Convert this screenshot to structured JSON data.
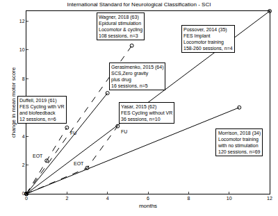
{
  "chart_data": {
    "type": "line",
    "title": "International Standard for Neurological Classification - SCI",
    "x_label": "months",
    "y_label": "change in mean motor score",
    "xlim": [
      0,
      12
    ],
    "ylim": [
      0,
      12.7
    ],
    "xticks": [
      0,
      2,
      4,
      6,
      8,
      10,
      12
    ],
    "yticks": [
      0,
      2,
      4,
      6,
      8,
      10,
      12
    ],
    "grid": false,
    "series": [
      {
        "name": "Wagner, 2018 (63)",
        "label": [
          "Epidural stimulation",
          "Locomotor & cycling",
          "108 sessions, n=3"
        ],
        "x": [
          0,
          5.2
        ],
        "values": [
          0,
          10.3
        ],
        "point_labels": [
          null,
          null
        ],
        "color": "#000000",
        "line_style": "dash",
        "marker": "circle"
      },
      {
        "name": "Gerasimenko, 2015 (64)",
        "label": [
          "SCS,Zero gravity",
          "plus drug",
          "16 sessions, n=5"
        ],
        "x": [
          0,
          4
        ],
        "values": [
          0,
          7
        ],
        "point_labels": [
          null,
          null
        ],
        "color": "#000000",
        "line_style": "solid",
        "marker": "circle"
      },
      {
        "name": "Duffell, 2019 (61)",
        "label": [
          "FES Cycling with VR",
          "and biofeedback",
          "12 sessions, n=6"
        ],
        "x": [
          0,
          1,
          2
        ],
        "values": [
          0,
          2.3,
          4.6
        ],
        "point_labels": [
          null,
          "EOT",
          "FU"
        ],
        "color": "#000000",
        "line_style": "dash",
        "marker": "circle"
      },
      {
        "name": "Yasar, 2015 (62)",
        "label": [
          "FES Cycling without VR",
          "36 sessions, n=10"
        ],
        "x": [
          0,
          3,
          4.5
        ],
        "values": [
          0,
          1.8,
          4.7
        ],
        "point_labels": [
          null,
          "EOT",
          "FU"
        ],
        "color": "#000000",
        "line_style": "dash",
        "marker": "circle"
      },
      {
        "name": "Possover, 2014 (35)",
        "label": [
          "FES Implant",
          "Locomotor training",
          "158-260 sessions, n=4"
        ],
        "x": [
          0,
          12
        ],
        "values": [
          0,
          12.7
        ],
        "point_labels": [
          null,
          null
        ],
        "color": "#000000",
        "line_style": "solid",
        "marker": "circle"
      },
      {
        "name": "Morrison, 2018 (34)",
        "label": [
          "Locomotor training",
          "with no stimulation",
          "120 sessions, n=69"
        ],
        "x": [
          0,
          10.5
        ],
        "values": [
          0,
          6
        ],
        "point_labels": [
          null,
          null
        ],
        "color": "#000000",
        "line_style": "solid",
        "marker": "circle"
      }
    ]
  }
}
